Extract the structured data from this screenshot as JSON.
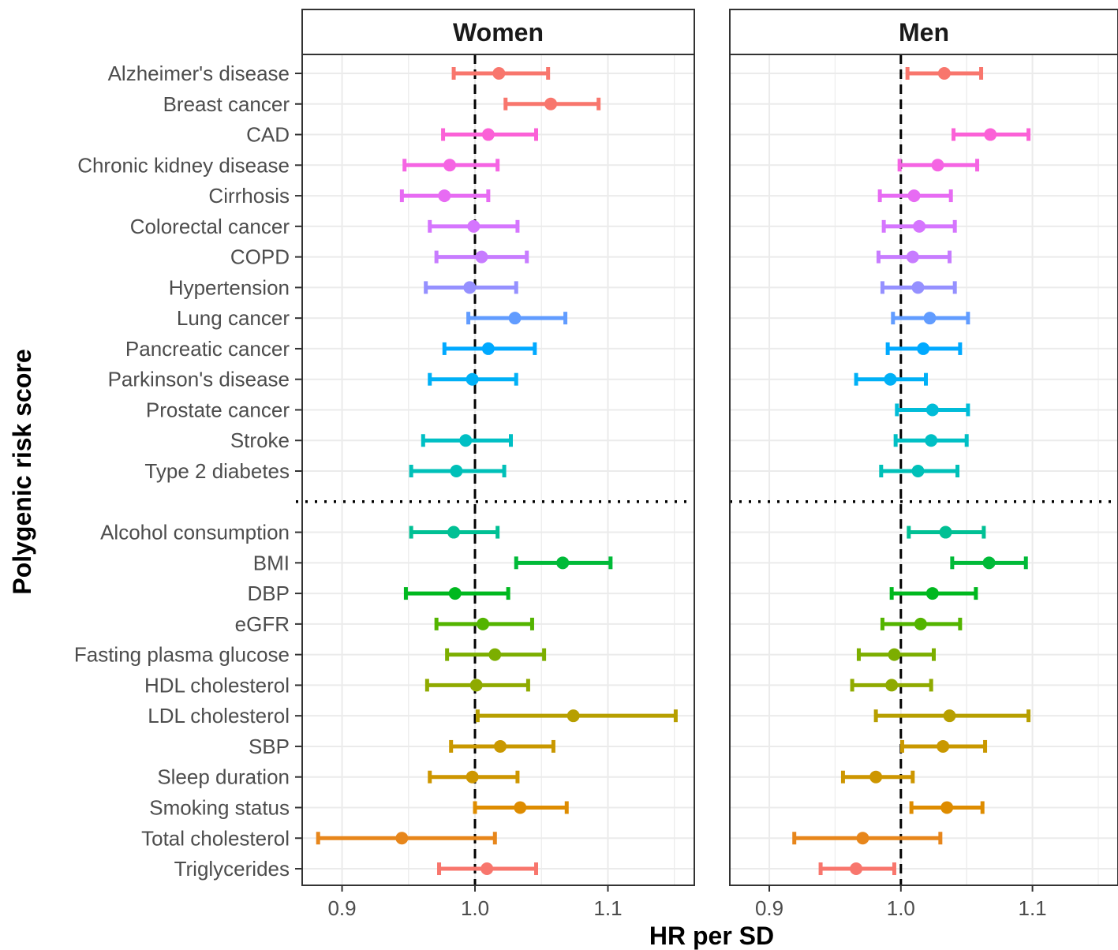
{
  "chart_data": {
    "type": "forest",
    "xlabel": "HR per SD",
    "ylabel": "Polygenic risk score",
    "xlim": [
      0.87,
      1.165
    ],
    "xticks": [
      "0.9",
      "1.0",
      "1.1"
    ],
    "xtick_values": [
      0.9,
      1.0,
      1.1
    ],
    "reference_line": 1.0,
    "grid": true,
    "group_separator_after": "Type 2 diabetes",
    "categories": [
      "Alzheimer's disease",
      "Breast cancer",
      "CAD",
      "Chronic kidney disease",
      "Cirrhosis",
      "Colorectal cancer",
      "COPD",
      "Hypertension",
      "Lung cancer",
      "Pancreatic cancer",
      "Parkinson's disease",
      "Prostate cancer",
      "Stroke",
      "Type 2 diabetes",
      "Alcohol consumption",
      "BMI",
      "DBP",
      "eGFR",
      "Fasting plasma glucose",
      "HDL cholesterol",
      "LDL cholesterol",
      "SBP",
      "Sleep duration",
      "Smoking status",
      "Total cholesterol",
      "Triglycerides"
    ],
    "colors": [
      "#F8766D",
      "#F8766D",
      "#FB61D7",
      "#F564E3",
      "#E76BF3",
      "#D575FE",
      "#C77CFF",
      "#9590FF",
      "#619CFF",
      "#00A9FF",
      "#00B0F6",
      "#00BCD8",
      "#00BFC4",
      "#00C0B8",
      "#00C094",
      "#00BA38",
      "#00B81F",
      "#53B400",
      "#7CAE00",
      "#8FAA00",
      "#B79F00",
      "#C99800",
      "#CD9600",
      "#DE8C00",
      "#E7861B",
      "#F8766D"
    ],
    "panels": [
      {
        "name": "Women",
        "hr": [
          1.018,
          1.057,
          1.01,
          0.981,
          0.977,
          0.999,
          1.005,
          0.996,
          1.03,
          1.01,
          0.998,
          null,
          0.993,
          0.986,
          0.984,
          1.066,
          0.985,
          1.006,
          1.015,
          1.001,
          1.074,
          1.019,
          0.998,
          1.034,
          0.945,
          1.009
        ],
        "lo": [
          0.984,
          1.023,
          0.976,
          0.947,
          0.945,
          0.966,
          0.971,
          0.963,
          0.995,
          0.977,
          0.966,
          null,
          0.961,
          0.952,
          0.952,
          1.031,
          0.948,
          0.971,
          0.979,
          0.964,
          1.002,
          0.982,
          0.966,
          1.0,
          0.882,
          0.973
        ],
        "hi": [
          1.055,
          1.093,
          1.046,
          1.017,
          1.01,
          1.032,
          1.039,
          1.031,
          1.068,
          1.045,
          1.031,
          null,
          1.027,
          1.022,
          1.017,
          1.102,
          1.025,
          1.043,
          1.052,
          1.04,
          1.151,
          1.059,
          1.032,
          1.069,
          1.015,
          1.046
        ]
      },
      {
        "name": "Men",
        "hr": [
          1.033,
          null,
          1.068,
          1.028,
          1.01,
          1.014,
          1.009,
          1.013,
          1.022,
          1.017,
          0.992,
          1.024,
          1.023,
          1.013,
          1.034,
          1.067,
          1.024,
          1.015,
          0.995,
          0.993,
          1.037,
          1.032,
          0.981,
          1.035,
          0.971,
          0.966
        ],
        "lo": [
          1.005,
          null,
          1.04,
          0.999,
          0.984,
          0.987,
          0.983,
          0.986,
          0.994,
          0.99,
          0.966,
          0.997,
          0.996,
          0.985,
          1.006,
          1.039,
          0.993,
          0.986,
          0.968,
          0.963,
          0.981,
          1.001,
          0.956,
          1.008,
          0.919,
          0.939
        ],
        "hi": [
          1.061,
          null,
          1.097,
          1.058,
          1.038,
          1.041,
          1.037,
          1.041,
          1.051,
          1.045,
          1.019,
          1.051,
          1.05,
          1.043,
          1.063,
          1.095,
          1.057,
          1.045,
          1.025,
          1.023,
          1.097,
          1.064,
          1.009,
          1.062,
          1.03,
          0.995
        ]
      }
    ]
  }
}
